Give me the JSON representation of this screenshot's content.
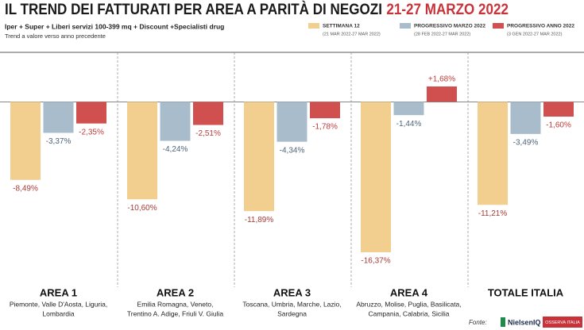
{
  "chart_data": {
    "type": "bar",
    "title": "IL TREND DEI FATTURATI PER AREA A PARITÀ DI NEGOZI",
    "title_date": "21-27 MARZO 2022",
    "subtitle": "Iper + Super + Liberi servizi 100-399 mq + Discount +Specialisti drug",
    "note": "Trend a valore verso anno precedente",
    "categories": [
      "AREA 1",
      "AREA 2",
      "AREA 3",
      "AREA 4",
      "TOTALE ITALIA"
    ],
    "subcategories": [
      [
        "Piemonte, Valle D'Aosta, Liguria,",
        "Lombardia"
      ],
      [
        "Emilia Romagna, Veneto,",
        "Trentino A. Adige, Friuli V. Giulia"
      ],
      [
        "Toscana, Umbria, Marche, Lazio,",
        "Sardegna"
      ],
      [
        "Abruzzo, Molise, Puglia, Basilicata,",
        "Campania, Calabria, Sicilia"
      ],
      []
    ],
    "series": [
      {
        "name": "SETTIMANA 12",
        "period": "(21 MAR 2022-27 MAR 2022)",
        "color": "#f2cf8f",
        "label_color": "#a83a35",
        "values": [
          -8.49,
          -10.6,
          -11.89,
          -16.37,
          -11.21
        ],
        "value_labels": [
          "-8,49%",
          "-10,60%",
          "-11,89%",
          "-16,37%",
          "-11,21%"
        ]
      },
      {
        "name": "PROGRESSIVO MARZO 2022",
        "period": "(28 FEB 2022-27 MAR 2022)",
        "color": "#a9bccb",
        "label_color": "#4e6579",
        "values": [
          -3.37,
          -4.24,
          -4.34,
          -1.44,
          -3.49
        ],
        "value_labels": [
          "-3,37%",
          "-4,24%",
          "-4,34%",
          "-1,44%",
          "-3,49%"
        ]
      },
      {
        "name": "PROGRESSIVO ANNO 2022",
        "period": "(3 GEN 2022-27 MAR 2022)",
        "color": "#d05050",
        "label_color": "#c03a3a",
        "values": [
          -2.35,
          -2.51,
          -1.78,
          1.68,
          -1.6
        ],
        "value_labels": [
          "-2,35%",
          "-2,51%",
          "-1,78%",
          "+1,68%",
          "-1,60%"
        ]
      }
    ],
    "source": "Fonte:",
    "logo": "NielsenIQ",
    "partner": "OSSERVA ITALIA"
  }
}
